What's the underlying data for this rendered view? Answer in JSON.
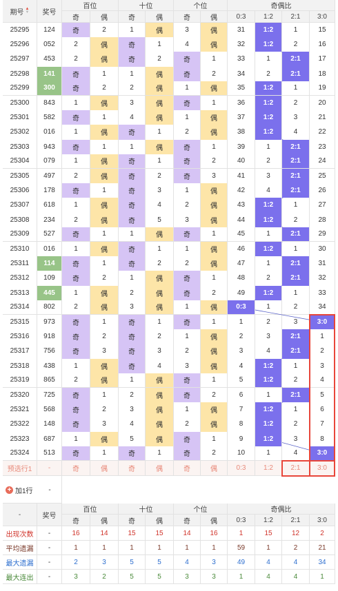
{
  "header": {
    "period": "期号",
    "sort_icon": "sort-icon",
    "award": "奖号",
    "groups": [
      "百位",
      "十位",
      "个位",
      "奇偶比"
    ],
    "sub": [
      "奇",
      "偶",
      "奇",
      "偶",
      "奇",
      "偶",
      "0:3",
      "1:2",
      "2:1",
      "3:0"
    ]
  },
  "rows": [
    {
      "p": "25295",
      "n": "124",
      "h": [
        "b",
        "2"
      ],
      "t": [
        "1",
        "b"
      ],
      "g": [
        "3",
        "b"
      ],
      "r": [
        "31",
        "h",
        "1",
        "15"
      ]
    },
    {
      "p": "25296",
      "n": "052",
      "h": [
        "2",
        "b"
      ],
      "t": [
        "b",
        "1"
      ],
      "g": [
        "4",
        "b"
      ],
      "r": [
        "32",
        "h",
        "2",
        "16"
      ]
    },
    {
      "p": "25297",
      "n": "453",
      "h": [
        "2",
        "b"
      ],
      "t": [
        "b",
        "2"
      ],
      "g": [
        "b",
        "1"
      ],
      "r": [
        "33",
        "1",
        "h",
        "17"
      ]
    },
    {
      "p": "25298",
      "n": "141",
      "hi": true,
      "h": [
        "b",
        "1"
      ],
      "t": [
        "1",
        "b"
      ],
      "g": [
        "b",
        "2"
      ],
      "r": [
        "34",
        "2",
        "h",
        "18"
      ]
    },
    {
      "p": "25299",
      "n": "300",
      "hi": true,
      "h": [
        "b",
        "2"
      ],
      "t": [
        "2",
        "b"
      ],
      "g": [
        "1",
        "b"
      ],
      "r": [
        "35",
        "h",
        "1",
        "19"
      ]
    },
    {
      "p": "25300",
      "n": "843",
      "h": [
        "1",
        "b"
      ],
      "t": [
        "3",
        "b"
      ],
      "g": [
        "b",
        "1"
      ],
      "r": [
        "36",
        "h",
        "2",
        "20"
      ]
    },
    {
      "p": "25301",
      "n": "582",
      "h": [
        "b",
        "1"
      ],
      "t": [
        "4",
        "b"
      ],
      "g": [
        "1",
        "b"
      ],
      "r": [
        "37",
        "h",
        "3",
        "21"
      ]
    },
    {
      "p": "25302",
      "n": "016",
      "h": [
        "1",
        "b"
      ],
      "t": [
        "b",
        "1"
      ],
      "g": [
        "2",
        "b"
      ],
      "r": [
        "38",
        "h",
        "4",
        "22"
      ]
    },
    {
      "p": "25303",
      "n": "943",
      "h": [
        "b",
        "1"
      ],
      "t": [
        "1",
        "b"
      ],
      "g": [
        "b",
        "1"
      ],
      "r": [
        "39",
        "1",
        "h",
        "23"
      ]
    },
    {
      "p": "25304",
      "n": "079",
      "h": [
        "1",
        "b"
      ],
      "t": [
        "b",
        "1"
      ],
      "g": [
        "b",
        "2"
      ],
      "r": [
        "40",
        "2",
        "h",
        "24"
      ]
    },
    {
      "p": "25305",
      "n": "497",
      "h": [
        "2",
        "b"
      ],
      "t": [
        "b",
        "2"
      ],
      "g": [
        "b",
        "3"
      ],
      "r": [
        "41",
        "3",
        "h",
        "25"
      ]
    },
    {
      "p": "25306",
      "n": "178",
      "h": [
        "b",
        "1"
      ],
      "t": [
        "b",
        "3"
      ],
      "g": [
        "1",
        "b"
      ],
      "r": [
        "42",
        "4",
        "h",
        "26"
      ]
    },
    {
      "p": "25307",
      "n": "618",
      "h": [
        "1",
        "b"
      ],
      "t": [
        "b",
        "4"
      ],
      "g": [
        "2",
        "b"
      ],
      "r": [
        "43",
        "h",
        "1",
        "27"
      ]
    },
    {
      "p": "25308",
      "n": "234",
      "h": [
        "2",
        "b"
      ],
      "t": [
        "b",
        "5"
      ],
      "g": [
        "3",
        "b"
      ],
      "r": [
        "44",
        "h",
        "2",
        "28"
      ]
    },
    {
      "p": "25309",
      "n": "527",
      "h": [
        "b",
        "1"
      ],
      "t": [
        "1",
        "b"
      ],
      "g": [
        "b",
        "1"
      ],
      "r": [
        "45",
        "1",
        "h",
        "29"
      ]
    },
    {
      "p": "25310",
      "n": "016",
      "h": [
        "1",
        "b"
      ],
      "t": [
        "b",
        "1"
      ],
      "g": [
        "1",
        "b"
      ],
      "r": [
        "46",
        "h",
        "1",
        "30"
      ]
    },
    {
      "p": "25311",
      "n": "114",
      "hi": true,
      "h": [
        "b",
        "1"
      ],
      "t": [
        "b",
        "2"
      ],
      "g": [
        "2",
        "b"
      ],
      "r": [
        "47",
        "1",
        "h",
        "31"
      ]
    },
    {
      "p": "25312",
      "n": "109",
      "h": [
        "b",
        "2"
      ],
      "t": [
        "1",
        "b"
      ],
      "g": [
        "b",
        "1"
      ],
      "r": [
        "48",
        "2",
        "h",
        "32"
      ]
    },
    {
      "p": "25313",
      "n": "445",
      "hi": true,
      "h": [
        "1",
        "b"
      ],
      "t": [
        "2",
        "b"
      ],
      "g": [
        "b",
        "2"
      ],
      "r": [
        "49",
        "h",
        "1",
        "33"
      ]
    },
    {
      "p": "25314",
      "n": "802",
      "h": [
        "2",
        "b"
      ],
      "t": [
        "3",
        "b"
      ],
      "g": [
        "1",
        "b"
      ],
      "r": [
        "h",
        "1",
        "2",
        "34"
      ]
    },
    {
      "p": "25315",
      "n": "973",
      "h": [
        "b",
        "1"
      ],
      "t": [
        "b",
        "1"
      ],
      "g": [
        "b",
        "1"
      ],
      "r": [
        "1",
        "2",
        "3",
        "h"
      ]
    },
    {
      "p": "25316",
      "n": "918",
      "h": [
        "b",
        "2"
      ],
      "t": [
        "b",
        "2"
      ],
      "g": [
        "1",
        "b"
      ],
      "r": [
        "2",
        "3",
        "h",
        "1"
      ]
    },
    {
      "p": "25317",
      "n": "756",
      "h": [
        "b",
        "3"
      ],
      "t": [
        "b",
        "3"
      ],
      "g": [
        "2",
        "b"
      ],
      "r": [
        "3",
        "4",
        "h",
        "2"
      ]
    },
    {
      "p": "25318",
      "n": "438",
      "h": [
        "1",
        "b"
      ],
      "t": [
        "b",
        "4"
      ],
      "g": [
        "3",
        "b"
      ],
      "r": [
        "4",
        "h",
        "1",
        "3"
      ]
    },
    {
      "p": "25319",
      "n": "865",
      "h": [
        "2",
        "b"
      ],
      "t": [
        "1",
        "b"
      ],
      "g": [
        "b",
        "1"
      ],
      "r": [
        "5",
        "h",
        "2",
        "4"
      ]
    },
    {
      "p": "25320",
      "n": "725",
      "h": [
        "b",
        "1"
      ],
      "t": [
        "2",
        "b"
      ],
      "g": [
        "b",
        "2"
      ],
      "r": [
        "6",
        "1",
        "h",
        "5"
      ]
    },
    {
      "p": "25321",
      "n": "568",
      "h": [
        "b",
        "2"
      ],
      "t": [
        "3",
        "b"
      ],
      "g": [
        "1",
        "b"
      ],
      "r": [
        "7",
        "h",
        "1",
        "6"
      ]
    },
    {
      "p": "25322",
      "n": "148",
      "h": [
        "b",
        "3"
      ],
      "t": [
        "4",
        "b"
      ],
      "g": [
        "2",
        "b"
      ],
      "r": [
        "8",
        "h",
        "2",
        "7"
      ]
    },
    {
      "p": "25323",
      "n": "687",
      "h": [
        "1",
        "b"
      ],
      "t": [
        "5",
        "b"
      ],
      "g": [
        "b",
        "1"
      ],
      "r": [
        "9",
        "h",
        "3",
        "8"
      ]
    },
    {
      "p": "25324",
      "n": "513",
      "h": [
        "b",
        "1"
      ],
      "t": [
        "b",
        "1"
      ],
      "g": [
        "b",
        "2"
      ],
      "r": [
        "10",
        "1",
        "4",
        "h"
      ]
    }
  ],
  "ratio_labels": [
    "0:3",
    "1:2",
    "2:1",
    "3:0"
  ],
  "predict": {
    "label": "预选行1",
    "award": "-",
    "cells": [
      "奇",
      "偶",
      "奇",
      "偶",
      "奇",
      "偶",
      "0:3",
      "1:2",
      "2:1",
      "3:0"
    ]
  },
  "add_row": {
    "label": "加1行",
    "value": "-"
  },
  "stats_header": {
    "period": "-",
    "award": "奖号"
  },
  "stats": [
    {
      "label": "出现次数",
      "award": "-",
      "color": "red",
      "values": [
        "16",
        "14",
        "15",
        "15",
        "14",
        "16",
        "1",
        "15",
        "12",
        "2"
      ]
    },
    {
      "label": "平均遗漏",
      "award": "-",
      "color": "brown",
      "values": [
        "1",
        "1",
        "1",
        "1",
        "1",
        "1",
        "59",
        "1",
        "2",
        "21"
      ]
    },
    {
      "label": "最大遗漏",
      "award": "-",
      "color": "blue",
      "values": [
        "2",
        "3",
        "5",
        "5",
        "4",
        "3",
        "49",
        "4",
        "4",
        "34"
      ]
    },
    {
      "label": "最大连出",
      "award": "-",
      "color": "green",
      "values": [
        "3",
        "2",
        "5",
        "5",
        "3",
        "3",
        "1",
        "4",
        "4",
        "1"
      ]
    }
  ],
  "colors": {
    "odd": "#d6c4f5",
    "even": "#fde5a8",
    "ratio_hit": "#7b70ec",
    "sum_highlight": "#98c488",
    "predict_text": "#e88a7a",
    "box_red": "#e8463a",
    "header_bg": "#f2f2f2"
  }
}
